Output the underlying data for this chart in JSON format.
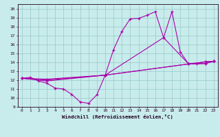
{
  "xlabel": "Windchill (Refroidissement éolien,°C)",
  "bg_color": "#c8ecec",
  "grid_color": "#a0cccc",
  "line_color": "#aa00aa",
  "xlim": [
    -0.5,
    23.5
  ],
  "ylim": [
    9,
    20.5
  ],
  "yticks": [
    9,
    10,
    11,
    12,
    13,
    14,
    15,
    16,
    17,
    18,
    19,
    20
  ],
  "xticks": [
    0,
    1,
    2,
    3,
    4,
    5,
    6,
    7,
    8,
    9,
    10,
    11,
    12,
    13,
    14,
    15,
    16,
    17,
    18,
    19,
    20,
    21,
    22,
    23
  ],
  "series1": {
    "x": [
      0,
      1,
      2,
      3,
      4,
      5,
      6,
      7,
      8,
      9,
      10,
      11,
      12,
      13,
      14,
      15,
      16,
      17,
      18,
      19,
      20,
      21,
      22,
      23
    ],
    "y": [
      12.2,
      12.3,
      11.9,
      11.65,
      11.1,
      11.0,
      10.4,
      9.55,
      9.4,
      10.35,
      12.55,
      15.4,
      17.45,
      18.85,
      18.9,
      19.25,
      19.65,
      16.75,
      19.65,
      15.15,
      13.8,
      13.85,
      14.05,
      14.1
    ]
  },
  "series2": {
    "x": [
      0,
      3,
      10,
      17,
      20,
      22,
      23
    ],
    "y": [
      12.2,
      12.0,
      12.55,
      16.75,
      13.8,
      13.85,
      14.1
    ]
  },
  "series3": {
    "x": [
      0,
      3,
      10,
      20,
      22,
      23
    ],
    "y": [
      12.2,
      11.9,
      12.55,
      13.8,
      13.85,
      14.1
    ]
  },
  "series4": {
    "x": [
      0,
      3,
      10,
      20,
      22,
      23
    ],
    "y": [
      12.2,
      12.1,
      12.55,
      13.8,
      14.05,
      14.1
    ]
  }
}
